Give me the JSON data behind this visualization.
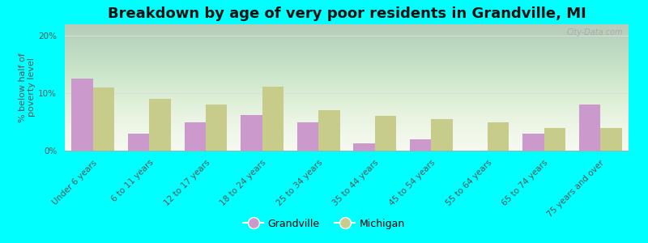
{
  "title": "Breakdown by age of very poor residents in Grandville, MI",
  "ylabel": "% below half of\npoverty level",
  "categories": [
    "Under 6 years",
    "6 to 11 years",
    "12 to 17 years",
    "18 to 24 years",
    "25 to 34 years",
    "35 to 44 years",
    "45 to 54 years",
    "55 to 64 years",
    "65 to 74 years",
    "75 years and over"
  ],
  "grandville_values": [
    12.5,
    3.0,
    5.0,
    6.2,
    5.0,
    1.2,
    2.0,
    0.0,
    3.0,
    8.0
  ],
  "michigan_values": [
    11.0,
    9.0,
    8.0,
    11.2,
    7.0,
    6.0,
    5.5,
    5.0,
    4.0,
    4.0
  ],
  "grandville_color": "#cc99cc",
  "michigan_color": "#c8cc8a",
  "background_color": "#00ffff",
  "ylim": [
    0,
    22
  ],
  "yticks": [
    0,
    10,
    20
  ],
  "ytick_labels": [
    "0%",
    "10%",
    "20%"
  ],
  "bar_width": 0.38,
  "title_fontsize": 13,
  "axis_label_fontsize": 8,
  "tick_fontsize": 7.5,
  "legend_fontsize": 9,
  "watermark": "City-Data.com"
}
